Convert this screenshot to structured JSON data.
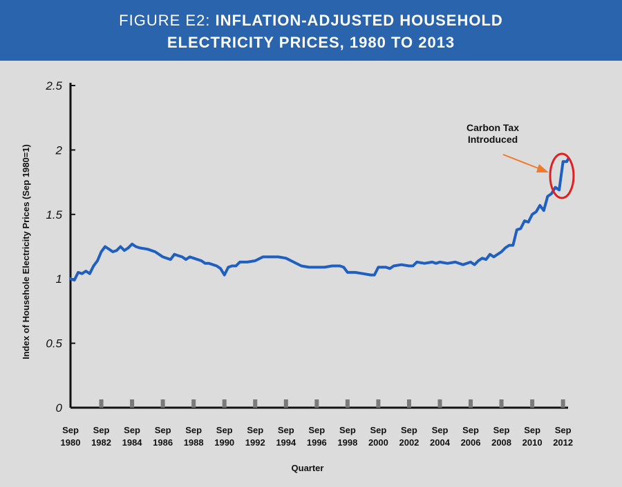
{
  "header": {
    "title_prefix": "FIGURE E2:",
    "title_line1": "INFLATION-ADJUSTED HOUSEHOLD",
    "title_line2": "ELECTRICITY PRICES, 1980 TO 2013"
  },
  "colors": {
    "banner": "#2a64ad",
    "line": "#1f5fbf",
    "annotation_arrow": "#f07a2a",
    "annotation_ellipse": "#e02020",
    "background": "#dcdcdc"
  },
  "chart_data": {
    "type": "line",
    "xlabel": "Quarter",
    "ylabel": "Index of Househole Electricity Prices (Sep 1980=1)",
    "ylim": [
      0,
      2.5
    ],
    "yticks": [
      "0",
      "0.5",
      "1",
      "1.5",
      "2",
      "2.5"
    ],
    "xlim": [
      1980.67,
      2013.0
    ],
    "xticks": [
      {
        "line1": "Sep",
        "line2": "1980"
      },
      {
        "line1": "Sep",
        "line2": "1982"
      },
      {
        "line1": "Sep",
        "line2": "1984"
      },
      {
        "line1": "Sep",
        "line2": "1986"
      },
      {
        "line1": "Sep",
        "line2": "1988"
      },
      {
        "line1": "Sep",
        "line2": "1990"
      },
      {
        "line1": "Sep",
        "line2": "1992"
      },
      {
        "line1": "Sep",
        "line2": "1994"
      },
      {
        "line1": "Sep",
        "line2": "1996"
      },
      {
        "line1": "Sep",
        "line2": "1998"
      },
      {
        "line1": "Sep",
        "line2": "2000"
      },
      {
        "line1": "Sep",
        "line2": "2002"
      },
      {
        "line1": "Sep",
        "line2": "2004"
      },
      {
        "line1": "Sep",
        "line2": "2006"
      },
      {
        "line1": "Sep",
        "line2": "2008"
      },
      {
        "line1": "Sep",
        "line2": "2010"
      },
      {
        "line1": "Sep",
        "line2": "2012"
      }
    ],
    "grid": false,
    "series": [
      {
        "x": [
          1980.67,
          1980.92,
          1981.17,
          1981.42,
          1981.67,
          1981.92,
          1982.17,
          1982.42,
          1982.67,
          1982.92,
          1983.17,
          1983.42,
          1983.67,
          1983.92,
          1984.17,
          1984.42,
          1984.67,
          1984.92,
          1985.17,
          1985.67,
          1986.17,
          1986.67,
          1987.17,
          1987.42,
          1987.67,
          1987.92,
          1988.17,
          1988.42,
          1988.67,
          1989.17,
          1989.42,
          1989.67,
          1990.17,
          1990.42,
          1990.67,
          1990.92,
          1991.17,
          1991.42,
          1991.67,
          1992.17,
          1992.67,
          1993.17,
          1993.67,
          1994.17,
          1994.67,
          1995.17,
          1995.67,
          1996.17,
          1996.67,
          1997.17,
          1997.67,
          1998.17,
          1998.42,
          1998.67,
          1999.17,
          1999.67,
          2000.17,
          2000.42,
          2000.67,
          2001.17,
          2001.42,
          2001.67,
          2002.17,
          2002.67,
          2002.92,
          2003.17,
          2003.67,
          2004.17,
          2004.42,
          2004.67,
          2005.17,
          2005.67,
          2006.17,
          2006.67,
          2006.92,
          2007.17,
          2007.42,
          2007.67,
          2007.92,
          2008.17,
          2008.42,
          2008.67,
          2008.92,
          2009.17,
          2009.42,
          2009.67,
          2009.92,
          2010.17,
          2010.42,
          2010.67,
          2010.92,
          2011.17,
          2011.42,
          2011.67,
          2011.92,
          2012.17,
          2012.42,
          2012.67,
          2012.92,
          2013.0
        ],
        "y": [
          1.0,
          0.99,
          1.05,
          1.04,
          1.06,
          1.04,
          1.1,
          1.14,
          1.21,
          1.25,
          1.23,
          1.21,
          1.22,
          1.25,
          1.22,
          1.24,
          1.27,
          1.25,
          1.24,
          1.23,
          1.21,
          1.17,
          1.15,
          1.19,
          1.18,
          1.17,
          1.15,
          1.17,
          1.16,
          1.14,
          1.12,
          1.12,
          1.1,
          1.08,
          1.03,
          1.09,
          1.1,
          1.1,
          1.13,
          1.13,
          1.14,
          1.17,
          1.17,
          1.17,
          1.16,
          1.13,
          1.1,
          1.09,
          1.09,
          1.09,
          1.1,
          1.1,
          1.09,
          1.05,
          1.05,
          1.04,
          1.03,
          1.03,
          1.09,
          1.09,
          1.08,
          1.1,
          1.11,
          1.1,
          1.1,
          1.13,
          1.12,
          1.13,
          1.12,
          1.13,
          1.12,
          1.13,
          1.11,
          1.13,
          1.11,
          1.14,
          1.16,
          1.15,
          1.19,
          1.17,
          1.19,
          1.21,
          1.24,
          1.26,
          1.26,
          1.38,
          1.39,
          1.45,
          1.44,
          1.5,
          1.52,
          1.57,
          1.53,
          1.64,
          1.66,
          1.71,
          1.69,
          1.91,
          1.91,
          1.93
        ]
      }
    ],
    "annotation": {
      "text_line1": "Carbon Tax",
      "text_line2": "Introduced"
    }
  }
}
